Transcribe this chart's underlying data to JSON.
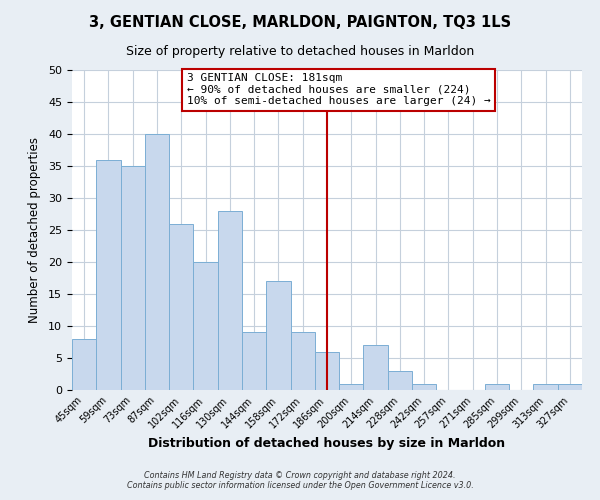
{
  "title": "3, GENTIAN CLOSE, MARLDON, PAIGNTON, TQ3 1LS",
  "subtitle": "Size of property relative to detached houses in Marldon",
  "xlabel": "Distribution of detached houses by size in Marldon",
  "ylabel": "Number of detached properties",
  "bar_color": "#c8d8ed",
  "bar_edge_color": "#7baed4",
  "bin_labels": [
    "45sqm",
    "59sqm",
    "73sqm",
    "87sqm",
    "102sqm",
    "116sqm",
    "130sqm",
    "144sqm",
    "158sqm",
    "172sqm",
    "186sqm",
    "200sqm",
    "214sqm",
    "228sqm",
    "242sqm",
    "257sqm",
    "271sqm",
    "285sqm",
    "299sqm",
    "313sqm",
    "327sqm"
  ],
  "bar_values": [
    8,
    36,
    35,
    40,
    26,
    20,
    28,
    9,
    17,
    9,
    6,
    1,
    7,
    3,
    1,
    0,
    0,
    1,
    0,
    1,
    1
  ],
  "ylim": [
    0,
    50
  ],
  "yticks": [
    0,
    5,
    10,
    15,
    20,
    25,
    30,
    35,
    40,
    45,
    50
  ],
  "vline_x": 10.5,
  "vline_color": "#bb0000",
  "annotation_title": "3 GENTIAN CLOSE: 181sqm",
  "annotation_line1": "← 90% of detached houses are smaller (224)",
  "annotation_line2": "10% of semi-detached houses are larger (24) →",
  "footer_line1": "Contains HM Land Registry data © Crown copyright and database right 2024.",
  "footer_line2": "Contains public sector information licensed under the Open Government Licence v3.0.",
  "background_color": "#e8eef4",
  "plot_background_color": "#ffffff",
  "grid_color": "#c5d0dc"
}
